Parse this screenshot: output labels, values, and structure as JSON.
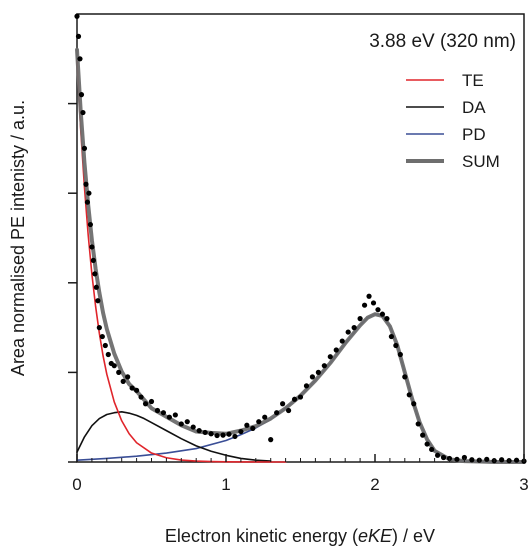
{
  "chart_data": {
    "type": "line",
    "title": "",
    "annotation": "3.88 eV (320 nm)",
    "xlabel_prefix": "Electron kinetic energy (",
    "xlabel_italic": "eKE",
    "xlabel_suffix": ") / eV",
    "ylabel": "Area normalised PE intenisty / a.u.",
    "xlim": [
      0,
      3
    ],
    "ylim": [
      0,
      1.0
    ],
    "x_ticks": [
      0,
      1,
      2,
      3
    ],
    "x_tick_labels": [
      "0",
      "1",
      "2",
      "3"
    ],
    "y_ticks": [
      0,
      0.2,
      0.4,
      0.6,
      0.8
    ],
    "y_tick_labels": [
      "",
      "",
      "",
      "",
      ""
    ],
    "legend_position": "top-right",
    "grid": false,
    "series": [
      {
        "name": "TE",
        "color": "#e0252b",
        "kind": "line",
        "x": [
          0,
          0.025,
          0.05,
          0.075,
          0.1,
          0.125,
          0.15,
          0.175,
          0.2,
          0.25,
          0.3,
          0.35,
          0.4,
          0.5,
          0.6,
          0.7,
          0.8,
          0.9,
          1.0,
          1.1,
          1.2,
          1.3,
          1.4
        ],
        "y": [
          0.895,
          0.741,
          0.613,
          0.507,
          0.419,
          0.347,
          0.287,
          0.237,
          0.196,
          0.134,
          0.092,
          0.063,
          0.043,
          0.02,
          0.0095,
          0.0044,
          0.002,
          0.001,
          0.0005,
          0.0002,
          0.0001,
          0.0,
          0.0
        ]
      },
      {
        "name": "DA",
        "color": "#111111",
        "kind": "line",
        "x": [
          0,
          0.05,
          0.1,
          0.15,
          0.2,
          0.25,
          0.3,
          0.35,
          0.4,
          0.45,
          0.5,
          0.6,
          0.7,
          0.8,
          0.9,
          1.0,
          1.1,
          1.2,
          1.3
        ],
        "y": [
          0.022,
          0.056,
          0.081,
          0.097,
          0.106,
          0.11,
          0.112,
          0.109,
          0.104,
          0.097,
          0.088,
          0.07,
          0.052,
          0.036,
          0.024,
          0.015,
          0.008,
          0.004,
          0.002
        ]
      },
      {
        "name": "PD",
        "color": "#3a4e96",
        "kind": "line",
        "x": [
          0,
          0.2,
          0.4,
          0.6,
          0.8,
          1.0,
          1.1,
          1.2,
          1.3,
          1.4,
          1.5,
          1.6,
          1.7,
          1.8,
          1.9,
          1.95,
          2.0,
          2.05,
          2.1,
          2.15,
          2.2,
          2.25,
          2.3,
          2.35,
          2.4,
          2.5,
          2.6,
          2.7,
          2.8,
          3.0
        ],
        "y": [
          0.004,
          0.008,
          0.013,
          0.02,
          0.03,
          0.048,
          0.061,
          0.076,
          0.095,
          0.12,
          0.148,
          0.182,
          0.221,
          0.265,
          0.305,
          0.322,
          0.33,
          0.326,
          0.303,
          0.26,
          0.2,
          0.14,
          0.088,
          0.05,
          0.025,
          0.006,
          0.002,
          0.001,
          0.0,
          0.0
        ]
      },
      {
        "name": "SUM",
        "color": "#6e6e6e",
        "kind": "line-thick",
        "x": [
          0,
          0.025,
          0.05,
          0.075,
          0.1,
          0.125,
          0.15,
          0.175,
          0.2,
          0.25,
          0.3,
          0.35,
          0.4,
          0.5,
          0.6,
          0.7,
          0.8,
          0.9,
          1.0,
          1.1,
          1.2,
          1.3,
          1.4,
          1.5,
          1.6,
          1.7,
          1.8,
          1.9,
          1.95,
          2.0,
          2.05,
          2.1,
          2.15,
          2.2,
          2.25,
          2.3,
          2.35,
          2.4,
          2.5,
          2.6,
          2.7,
          2.8,
          3.0
        ],
        "y": [
          0.92,
          0.782,
          0.668,
          0.574,
          0.495,
          0.431,
          0.378,
          0.333,
          0.297,
          0.242,
          0.202,
          0.174,
          0.158,
          0.12,
          0.101,
          0.082,
          0.068,
          0.065,
          0.063,
          0.07,
          0.08,
          0.097,
          0.12,
          0.148,
          0.182,
          0.221,
          0.265,
          0.305,
          0.322,
          0.33,
          0.326,
          0.303,
          0.26,
          0.2,
          0.14,
          0.088,
          0.05,
          0.025,
          0.006,
          0.002,
          0.001,
          0.0,
          0.0
        ]
      },
      {
        "name": "data",
        "color": "#000000",
        "kind": "points",
        "x": [
          0.0,
          0.01,
          0.02,
          0.03,
          0.04,
          0.05,
          0.06,
          0.07,
          0.08,
          0.09,
          0.1,
          0.11,
          0.12,
          0.13,
          0.14,
          0.15,
          0.17,
          0.19,
          0.21,
          0.23,
          0.25,
          0.28,
          0.31,
          0.34,
          0.37,
          0.4,
          0.43,
          0.46,
          0.5,
          0.54,
          0.58,
          0.62,
          0.66,
          0.7,
          0.74,
          0.78,
          0.82,
          0.86,
          0.9,
          0.94,
          0.98,
          1.02,
          1.06,
          1.1,
          1.14,
          1.18,
          1.22,
          1.26,
          1.3,
          1.34,
          1.38,
          1.42,
          1.46,
          1.5,
          1.54,
          1.58,
          1.62,
          1.66,
          1.7,
          1.74,
          1.78,
          1.82,
          1.86,
          1.9,
          1.93,
          1.96,
          1.99,
          2.02,
          2.05,
          2.08,
          2.11,
          2.14,
          2.17,
          2.2,
          2.23,
          2.26,
          2.29,
          2.32,
          2.35,
          2.38,
          2.42,
          2.46,
          2.5,
          2.55,
          2.6,
          2.65,
          2.7,
          2.75,
          2.8,
          2.85,
          2.9,
          2.95,
          3.0
        ],
        "y": [
          0.995,
          0.95,
          0.9,
          0.82,
          0.78,
          0.7,
          0.62,
          0.58,
          0.6,
          0.53,
          0.48,
          0.45,
          0.42,
          0.39,
          0.36,
          0.3,
          0.28,
          0.26,
          0.24,
          0.22,
          0.215,
          0.2,
          0.18,
          0.19,
          0.165,
          0.16,
          0.145,
          0.13,
          0.135,
          0.115,
          0.11,
          0.1,
          0.105,
          0.085,
          0.09,
          0.078,
          0.07,
          0.066,
          0.063,
          0.059,
          0.06,
          0.062,
          0.057,
          0.068,
          0.082,
          0.075,
          0.09,
          0.1,
          0.05,
          0.11,
          0.13,
          0.115,
          0.14,
          0.145,
          0.17,
          0.19,
          0.2,
          0.215,
          0.235,
          0.25,
          0.27,
          0.29,
          0.3,
          0.32,
          0.35,
          0.37,
          0.355,
          0.34,
          0.33,
          0.32,
          0.28,
          0.26,
          0.24,
          0.19,
          0.15,
          0.13,
          0.085,
          0.06,
          0.04,
          0.028,
          0.015,
          0.01,
          0.008,
          0.006,
          0.01,
          0.005,
          0.004,
          0.006,
          0.003,
          0.005,
          0.003,
          0.004,
          0.002
        ]
      }
    ]
  }
}
